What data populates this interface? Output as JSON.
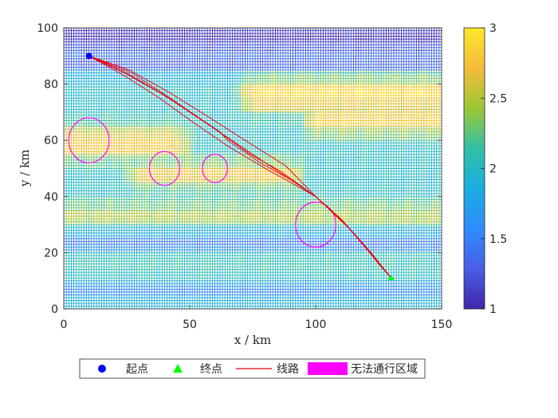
{
  "chart_data": {
    "type": "heatmap",
    "title": "",
    "xlabel": "x / km",
    "ylabel": "y / km",
    "xlim": [
      0,
      150
    ],
    "ylim": [
      0,
      100
    ],
    "xticks": [
      "0",
      "50",
      "100",
      "150"
    ],
    "yticks": [
      "0",
      "20",
      "40",
      "60",
      "80",
      "100"
    ],
    "grid_spacing": 1,
    "grid": true,
    "colorbar": {
      "range": [
        1,
        3
      ],
      "ticks": [
        "1",
        "1.5",
        "2",
        "2.5",
        "3"
      ],
      "colormap": "parula",
      "colors": [
        "#3e26a8",
        "#4a5ee5",
        "#2f8cfb",
        "#1aaee0",
        "#33c0a7",
        "#9bc733",
        "#f5bc3a",
        "#fce82a"
      ]
    },
    "terrain_bands": [
      {
        "y": 96,
        "width": 6,
        "value": 1.0
      },
      {
        "y": 88,
        "width": 4,
        "value": 1.3
      },
      {
        "y": 76,
        "width": 6,
        "x_from": 75,
        "value": 2.9
      },
      {
        "y": 67,
        "width": 5,
        "x_from": 100,
        "value": 2.8
      },
      {
        "y": 59,
        "width": 6,
        "x_to": 45,
        "value": 2.8
      },
      {
        "y": 48,
        "width": 5,
        "x_from": 30,
        "x_to": 90,
        "value": 2.7
      },
      {
        "y": 34,
        "width": 4,
        "value": 2.5
      },
      {
        "y": 24,
        "width": 3,
        "value": 1.4
      },
      {
        "y": 16,
        "width": 4,
        "value": 2.1
      },
      {
        "y": 6,
        "width": 3,
        "value": 1.5
      }
    ],
    "obstacles": [
      {
        "cx": 10,
        "cy": 60,
        "r": 8
      },
      {
        "cx": 40,
        "cy": 50,
        "r": 6
      },
      {
        "cx": 60,
        "cy": 50,
        "r": 5
      },
      {
        "cx": 100,
        "cy": 30,
        "r": 8
      }
    ],
    "start": {
      "x": 10,
      "y": 90
    },
    "end": {
      "x": 130,
      "y": 11
    },
    "routes": [
      [
        [
          10,
          90
        ],
        [
          25,
          84
        ],
        [
          40,
          76
        ],
        [
          55,
          67
        ],
        [
          70,
          58
        ],
        [
          85,
          49
        ],
        [
          100,
          40
        ],
        [
          110,
          32
        ],
        [
          118,
          24
        ],
        [
          125,
          16
        ],
        [
          130,
          11
        ]
      ],
      [
        [
          10,
          90
        ],
        [
          24,
          83
        ],
        [
          38,
          75
        ],
        [
          52,
          66
        ],
        [
          65,
          58
        ],
        [
          80,
          50
        ],
        [
          96,
          42
        ],
        [
          100,
          40
        ],
        [
          110,
          32
        ],
        [
          120,
          22
        ],
        [
          130,
          11
        ]
      ],
      [
        [
          10,
          90
        ],
        [
          26,
          85
        ],
        [
          42,
          77
        ],
        [
          58,
          68
        ],
        [
          72,
          60
        ],
        [
          88,
          51
        ],
        [
          100,
          40
        ],
        [
          112,
          30
        ],
        [
          122,
          20
        ],
        [
          130,
          11
        ]
      ],
      [
        [
          10,
          90
        ],
        [
          25,
          83.5
        ],
        [
          38,
          77
        ],
        [
          52,
          69
        ],
        [
          62,
          63
        ],
        [
          65,
          60
        ],
        [
          78,
          52
        ],
        [
          92,
          45
        ],
        [
          100,
          40
        ],
        [
          111,
          31
        ],
        [
          130,
          11
        ]
      ],
      [
        [
          10,
          90
        ],
        [
          27,
          84
        ],
        [
          44,
          74
        ],
        [
          60,
          64
        ],
        [
          74,
          55
        ],
        [
          86,
          49
        ],
        [
          100,
          40
        ],
        [
          114,
          28
        ],
        [
          130,
          11
        ]
      ]
    ],
    "legend": {
      "placement": "bottom",
      "entries": [
        "起点",
        "终点",
        "线路",
        "无法通行区域"
      ]
    }
  },
  "colors": {
    "start_marker": "#0000ff",
    "end_marker": "#00ff00",
    "route": "#e8000b",
    "obstacle": "#ff00ff"
  }
}
